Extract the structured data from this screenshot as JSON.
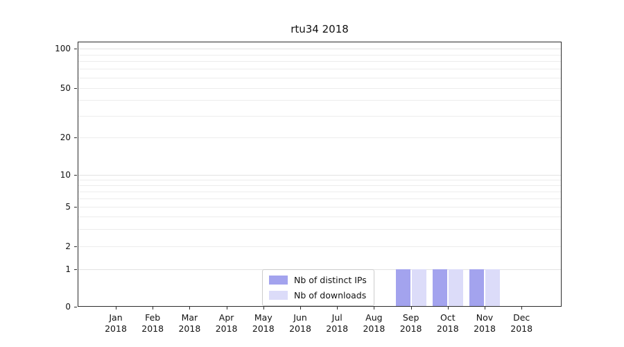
{
  "chart_data": {
    "type": "bar",
    "title": "rtu34 2018",
    "categories": [
      "Jan",
      "Feb",
      "Mar",
      "Apr",
      "May",
      "Jun",
      "Jul",
      "Aug",
      "Sep",
      "Oct",
      "Nov",
      "Dec"
    ],
    "year_label": "2018",
    "series": [
      {
        "name": "Nb of distinct IPs",
        "color": "#a3a3ee",
        "values": [
          0,
          0,
          0,
          0,
          0,
          0,
          0,
          0,
          1,
          1,
          1,
          0
        ]
      },
      {
        "name": "Nb of downloads",
        "color": "#dcdcf9",
        "values": [
          0,
          0,
          0,
          0,
          0,
          0,
          0,
          0,
          1,
          1,
          1,
          0
        ]
      }
    ],
    "yticks": [
      0,
      1,
      2,
      5,
      10,
      20,
      50,
      100
    ],
    "yaxis_scale": "symlog",
    "ylim": [
      0,
      107
    ],
    "xlabel": "",
    "ylabel": "",
    "grid": true,
    "grid_axis": "y",
    "legend_position": "inside lower-center",
    "colors": {
      "axis_border": "#2b2b2b",
      "gridline": "#ececec",
      "legend_border": "#cccccc",
      "background": "#ffffff"
    }
  }
}
